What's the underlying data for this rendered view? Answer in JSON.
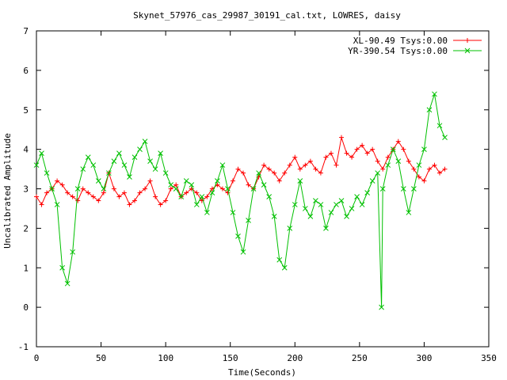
{
  "chart_data": {
    "type": "line",
    "title": "Skynet_57976_cas_29987_30191_cal.txt, LOWRES, daisy",
    "xlabel": "Time(Seconds)",
    "ylabel": "Uncalibrated Amplitude",
    "xlim": [
      0,
      350
    ],
    "ylim": [
      -1,
      7
    ],
    "xticks": [
      "0",
      "50",
      "100",
      "150",
      "200",
      "250",
      "300",
      "350"
    ],
    "yticks": [
      "-1",
      "0",
      "1",
      "2",
      "3",
      "4",
      "5",
      "6",
      "7"
    ],
    "grid": false,
    "legend_position": "top-right",
    "series": [
      {
        "name": "XL-90.49 Tsys:0.00",
        "color": "#ff0000",
        "marker": "plus",
        "x": [
          0,
          4,
          8,
          12,
          16,
          20,
          24,
          28,
          32,
          36,
          40,
          44,
          48,
          52,
          56,
          60,
          64,
          68,
          72,
          76,
          80,
          84,
          88,
          92,
          96,
          100,
          104,
          108,
          112,
          116,
          120,
          124,
          128,
          132,
          136,
          140,
          144,
          148,
          152,
          156,
          160,
          164,
          168,
          172,
          176,
          180,
          184,
          188,
          192,
          196,
          200,
          204,
          208,
          212,
          216,
          220,
          224,
          228,
          232,
          236,
          240,
          244,
          248,
          252,
          256,
          260,
          264,
          268,
          272,
          276,
          280,
          284,
          288,
          292,
          296,
          300,
          304,
          308,
          312,
          316
        ],
        "y": [
          2.8,
          2.6,
          2.9,
          3.0,
          3.2,
          3.1,
          2.9,
          2.8,
          2.7,
          3.0,
          2.9,
          2.8,
          2.7,
          2.9,
          3.4,
          3.0,
          2.8,
          2.9,
          2.6,
          2.7,
          2.9,
          3.0,
          3.2,
          2.8,
          2.6,
          2.7,
          3.0,
          3.1,
          2.8,
          2.9,
          3.0,
          2.9,
          2.7,
          2.8,
          3.0,
          3.1,
          3.0,
          2.9,
          3.2,
          3.5,
          3.4,
          3.1,
          3.0,
          3.3,
          3.6,
          3.5,
          3.4,
          3.2,
          3.4,
          3.6,
          3.8,
          3.5,
          3.6,
          3.7,
          3.5,
          3.4,
          3.8,
          3.9,
          3.6,
          4.3,
          3.9,
          3.8,
          4.0,
          4.1,
          3.9,
          4.0,
          3.7,
          3.5,
          3.8,
          4.0,
          4.2,
          4.0,
          3.7,
          3.5,
          3.3,
          3.2,
          3.5,
          3.6,
          3.4,
          3.5
        ]
      },
      {
        "name": "YR-390.54 Tsys:0.00",
        "color": "#00c000",
        "marker": "cross",
        "x": [
          0,
          4,
          8,
          12,
          16,
          20,
          24,
          28,
          32,
          36,
          40,
          44,
          48,
          52,
          56,
          60,
          64,
          68,
          72,
          76,
          80,
          84,
          88,
          92,
          96,
          100,
          104,
          108,
          112,
          116,
          120,
          124,
          128,
          132,
          136,
          140,
          144,
          148,
          152,
          156,
          160,
          164,
          168,
          172,
          176,
          180,
          184,
          188,
          192,
          196,
          200,
          204,
          208,
          212,
          216,
          220,
          224,
          228,
          232,
          236,
          240,
          244,
          248,
          252,
          256,
          260,
          264,
          267,
          268,
          272,
          276,
          280,
          284,
          288,
          292,
          296,
          300,
          304,
          308,
          312,
          316
        ],
        "y": [
          3.6,
          3.9,
          3.4,
          3.0,
          2.6,
          1.0,
          0.6,
          1.4,
          3.0,
          3.5,
          3.8,
          3.6,
          3.2,
          3.0,
          3.4,
          3.7,
          3.9,
          3.6,
          3.3,
          3.8,
          4.0,
          4.2,
          3.7,
          3.5,
          3.9,
          3.4,
          3.1,
          3.0,
          2.8,
          3.2,
          3.1,
          2.6,
          2.8,
          2.4,
          2.9,
          3.2,
          3.6,
          3.0,
          2.4,
          1.8,
          1.4,
          2.2,
          3.0,
          3.4,
          3.1,
          2.8,
          2.3,
          1.2,
          1.0,
          2.0,
          2.6,
          3.2,
          2.5,
          2.3,
          2.7,
          2.6,
          2.0,
          2.4,
          2.6,
          2.7,
          2.3,
          2.5,
          2.8,
          2.6,
          2.9,
          3.2,
          3.4,
          0.0,
          3.0,
          3.6,
          4.0,
          3.7,
          3.0,
          2.4,
          3.0,
          3.6,
          4.0,
          5.0,
          5.4,
          4.6,
          4.3
        ]
      }
    ]
  }
}
